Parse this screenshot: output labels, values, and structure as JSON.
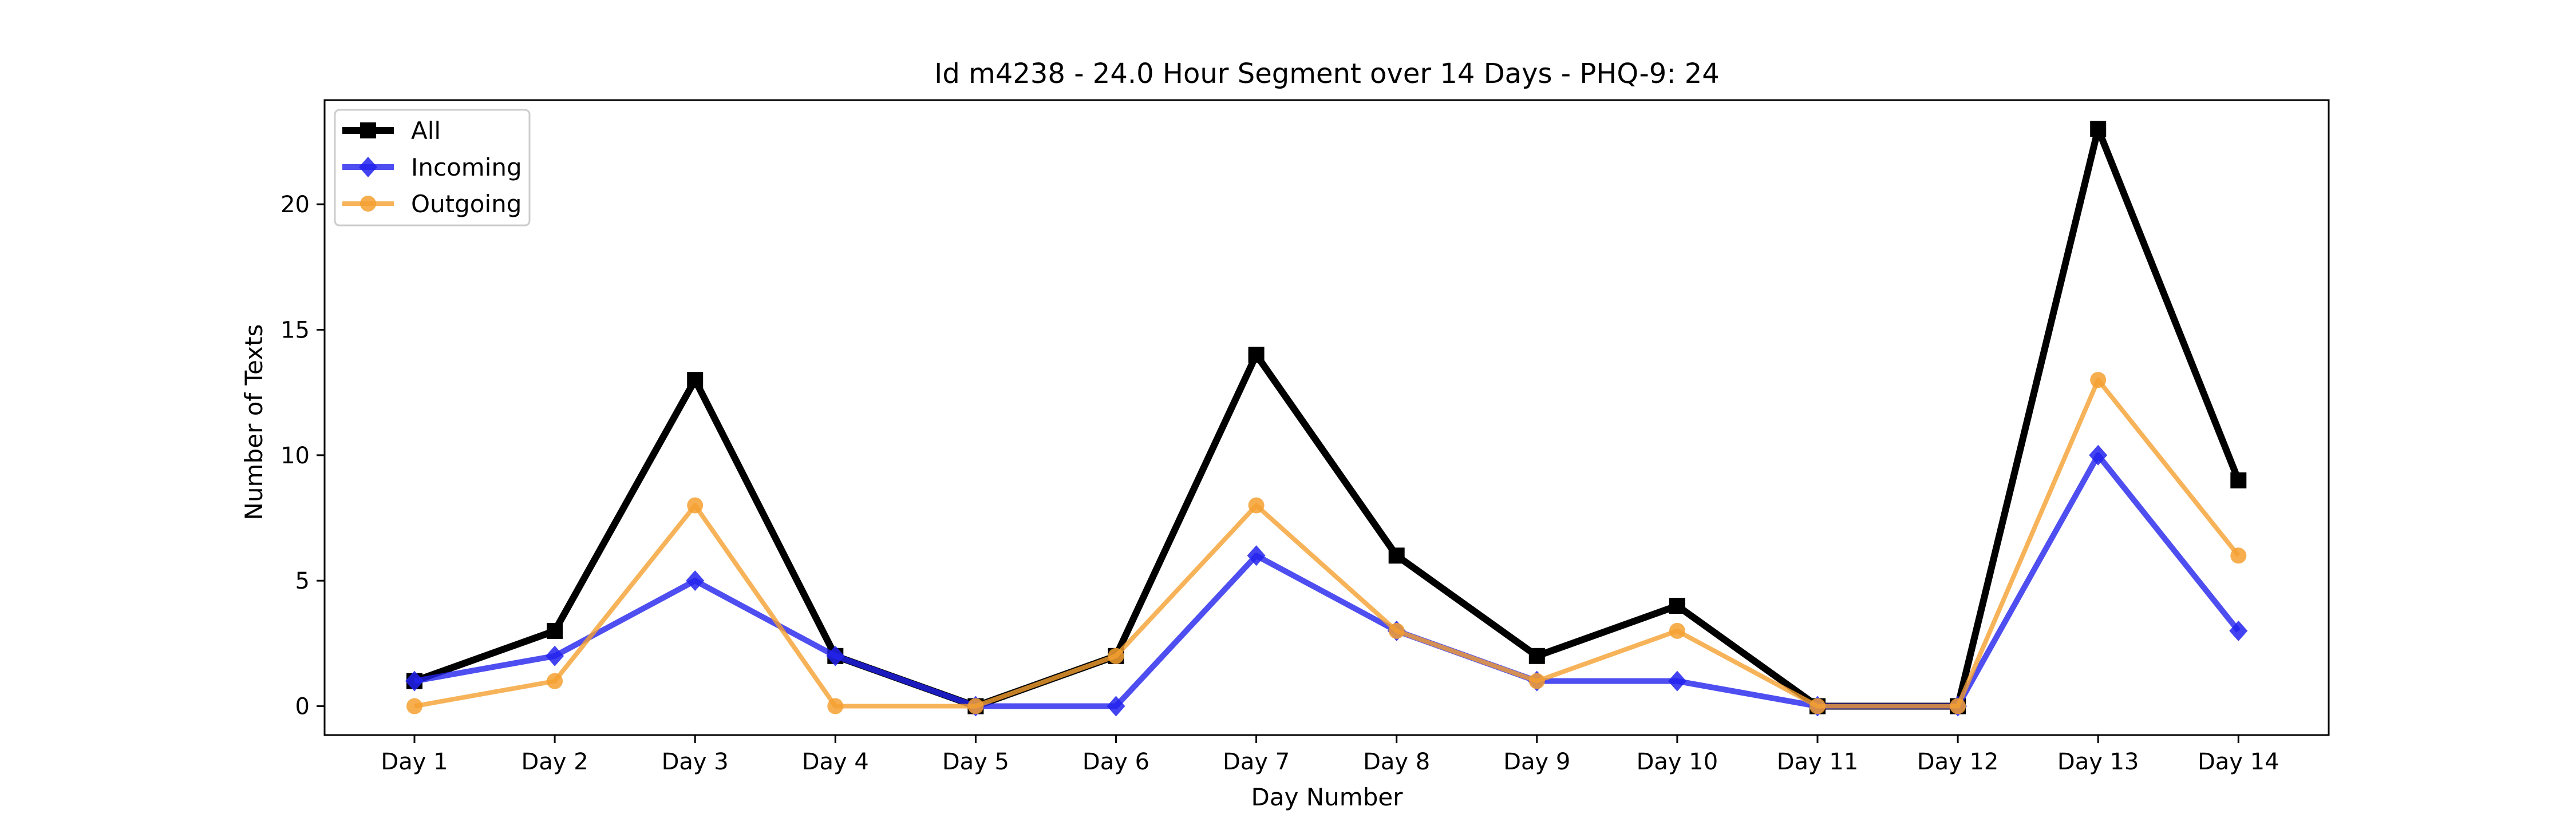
{
  "chart_data": {
    "type": "line",
    "title": "Id m4238 - 24.0 Hour Segment over 14 Days - PHQ-9: 24",
    "xlabel": "Day Number",
    "ylabel": "Number of Texts",
    "categories": [
      "Day 1",
      "Day 2",
      "Day 3",
      "Day 4",
      "Day 5",
      "Day 6",
      "Day 7",
      "Day 8",
      "Day 9",
      "Day 10",
      "Day 11",
      "Day 12",
      "Day 13",
      "Day 14"
    ],
    "ylim": [
      -1.15,
      24.15
    ],
    "yticks": [
      0,
      5,
      10,
      15,
      20
    ],
    "grid": false,
    "legend_position": "top-left",
    "series": [
      {
        "name": "All",
        "color": "#000000",
        "marker": "square",
        "values": [
          1,
          3,
          13,
          2,
          0,
          2,
          14,
          6,
          2,
          4,
          0,
          0,
          23,
          9
        ]
      },
      {
        "name": "Incoming",
        "color": "#2222ee",
        "marker": "diamond",
        "values": [
          1,
          2,
          5,
          2,
          0,
          0,
          6,
          3,
          1,
          1,
          0,
          0,
          10,
          3
        ]
      },
      {
        "name": "Outgoing",
        "color": "#f5a030",
        "marker": "circle",
        "values": [
          0,
          1,
          8,
          0,
          0,
          2,
          8,
          3,
          1,
          3,
          0,
          0,
          13,
          6
        ]
      }
    ]
  }
}
